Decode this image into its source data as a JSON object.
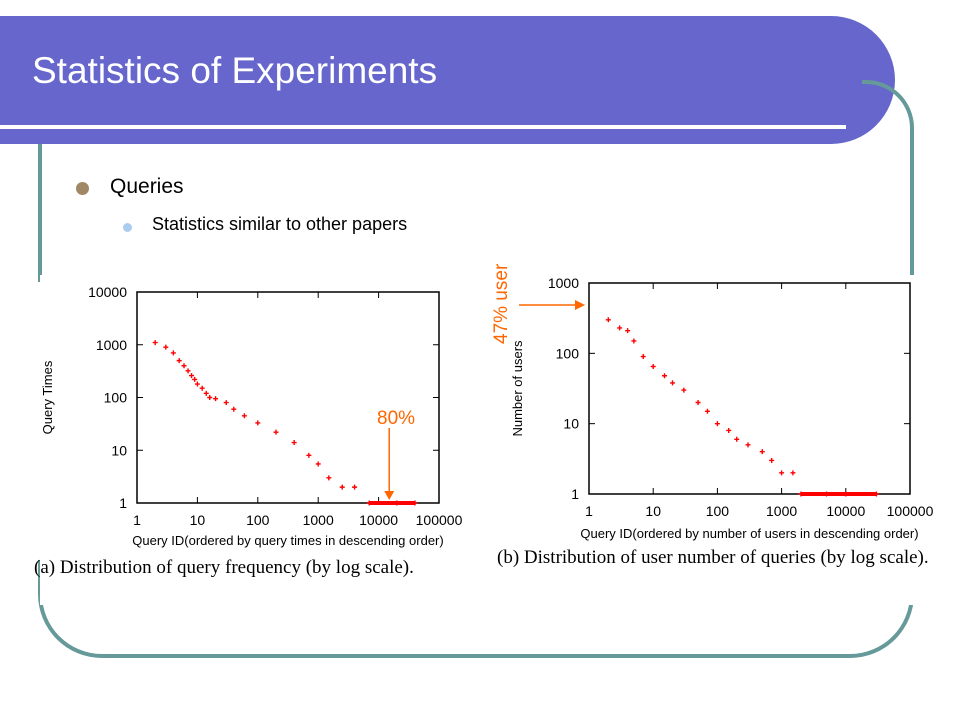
{
  "slide": {
    "title": "Statistics of Experiments",
    "bullet": "Queries",
    "subbullet": "Statistics similar to other papers"
  },
  "colors": {
    "header": "#6666cc",
    "frame": "#669999",
    "annotation": "#ff6600",
    "points": "#ff0000"
  },
  "chart_data": [
    {
      "type": "scatter",
      "xlabel": "Query ID(ordered by query times in descending order)",
      "ylabel": "Query Times",
      "xscale": "log",
      "yscale": "log",
      "xlim": [
        1,
        100000
      ],
      "ylim": [
        1,
        10000
      ],
      "xticks": [
        "1",
        "10",
        "100",
        "1000",
        "10000",
        "100000"
      ],
      "yticks": [
        "1",
        "10",
        "100",
        "1000",
        "10000"
      ],
      "grid": false,
      "caption": "(a) Distribution of query frequency (by log scale).",
      "annotation": "80%",
      "annotation_x": 15000,
      "series": [
        {
          "points": [
            [
              2,
              1100
            ],
            [
              3,
              900
            ],
            [
              4,
              700
            ],
            [
              5,
              500
            ],
            [
              6,
              400
            ],
            [
              7,
              320
            ],
            [
              8,
              260
            ],
            [
              9,
              220
            ],
            [
              10,
              180
            ],
            [
              12,
              150
            ],
            [
              14,
              120
            ],
            [
              16,
              100
            ],
            [
              20,
              95
            ],
            [
              30,
              80
            ],
            [
              40,
              60
            ],
            [
              60,
              45
            ],
            [
              100,
              33
            ],
            [
              200,
              22
            ],
            [
              400,
              14
            ],
            [
              700,
              8
            ],
            [
              1000,
              5.5
            ],
            [
              1500,
              3
            ],
            [
              2500,
              2
            ],
            [
              4000,
              2
            ],
            [
              7000,
              1
            ],
            [
              20000,
              1
            ],
            [
              40000,
              1
            ]
          ]
        }
      ]
    },
    {
      "type": "scatter",
      "xlabel": "Query ID(ordered by number of users in descending order)",
      "ylabel": "Number of users",
      "xscale": "log",
      "yscale": "log",
      "xlim": [
        1,
        100000
      ],
      "ylim": [
        1,
        1000
      ],
      "xticks": [
        "1",
        "10",
        "100",
        "1000",
        "10000",
        "100000"
      ],
      "yticks": [
        "1",
        "10",
        "100",
        "1000"
      ],
      "grid": false,
      "caption": "(b) Distribution of user number of queries (by log scale).",
      "annotation": "47% user",
      "annotation_y": 1000,
      "series": [
        {
          "points": [
            [
              2,
              300
            ],
            [
              3,
              230
            ],
            [
              4,
              210
            ],
            [
              5,
              150
            ],
            [
              7,
              90
            ],
            [
              10,
              65
            ],
            [
              15,
              48
            ],
            [
              20,
              38
            ],
            [
              30,
              30
            ],
            [
              50,
              20
            ],
            [
              70,
              15
            ],
            [
              100,
              10
            ],
            [
              150,
              8
            ],
            [
              200,
              6
            ],
            [
              300,
              5
            ],
            [
              500,
              4
            ],
            [
              700,
              3
            ],
            [
              1000,
              2
            ],
            [
              1500,
              2
            ],
            [
              2000,
              1
            ],
            [
              5000,
              1
            ],
            [
              10000,
              1
            ],
            [
              30000,
              1
            ]
          ]
        }
      ]
    }
  ]
}
